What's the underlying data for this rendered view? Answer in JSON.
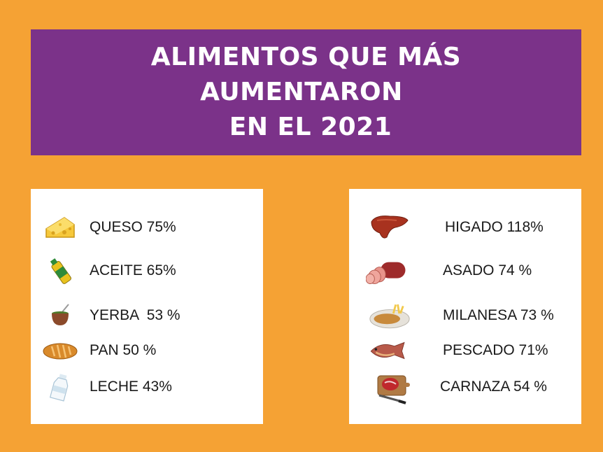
{
  "title": {
    "line1": "ALIMENTOS QUE MÁS",
    "line2": "AUMENTARON ",
    "line3": " EN EL 2021"
  },
  "left_items": [
    {
      "label": "QUESO 75%",
      "icon": "cheese-icon"
    },
    {
      "label": "ACEITE 65%",
      "icon": "oil-bottle-icon"
    },
    {
      "label": "YERBA  53 %",
      "icon": "mate-icon"
    },
    {
      "label": "PAN 50 %",
      "icon": "bread-icon"
    },
    {
      "label": "LECHE 43%",
      "icon": "milk-bottle-icon"
    }
  ],
  "right_items": [
    {
      "label": "HIGADO 118%",
      "icon": "liver-icon"
    },
    {
      "label": "ASADO 74 %",
      "icon": "meat-roll-icon"
    },
    {
      "label": "MILANESA 73 %",
      "icon": "milanesa-plate-icon"
    },
    {
      "label": "PESCADO 71%",
      "icon": "fish-icon"
    },
    {
      "label": "CARNAZA 54 %",
      "icon": "steak-board-icon"
    }
  ],
  "colors": {
    "background": "#F5A234",
    "banner": "#7B3289",
    "card": "#FFFFFF"
  }
}
